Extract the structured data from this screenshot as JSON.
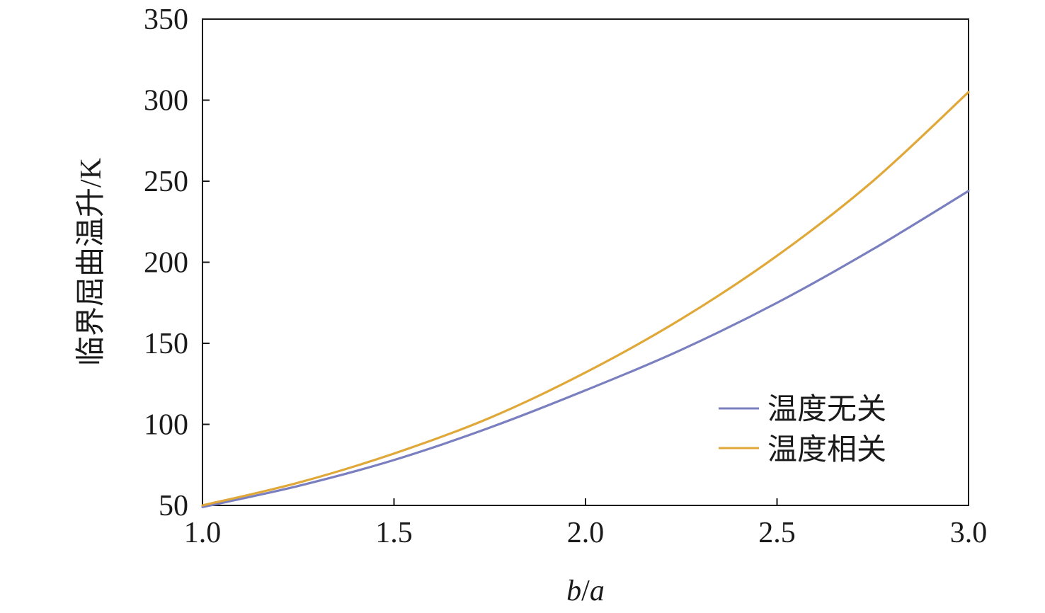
{
  "chart_data": {
    "type": "line",
    "xlabel_italic_b": "b",
    "xlabel_slash": "/",
    "xlabel_italic_a": "a",
    "ylabel": "临界屈曲温升/K",
    "xlim": [
      1.0,
      3.0
    ],
    "ylim": [
      50,
      350
    ],
    "x_ticks": [
      "1.0",
      "1.5",
      "2.0",
      "2.5",
      "3.0"
    ],
    "y_ticks": [
      "50",
      "100",
      "150",
      "200",
      "250",
      "300",
      "350"
    ],
    "grid": false,
    "legend_position": "bottom-right",
    "x": [
      1.0,
      1.25,
      1.5,
      1.75,
      2.0,
      2.25,
      2.5,
      2.75,
      3.0
    ],
    "series": [
      {
        "name": "温度无关",
        "color": "#7a7fc0",
        "values": [
          49,
          62,
          78,
          98,
          121,
          146,
          175,
          208,
          244
        ]
      },
      {
        "name": "温度相关",
        "color": "#e0a838",
        "values": [
          50,
          64,
          82,
          104,
          132,
          165,
          204,
          250,
          305
        ]
      }
    ]
  }
}
